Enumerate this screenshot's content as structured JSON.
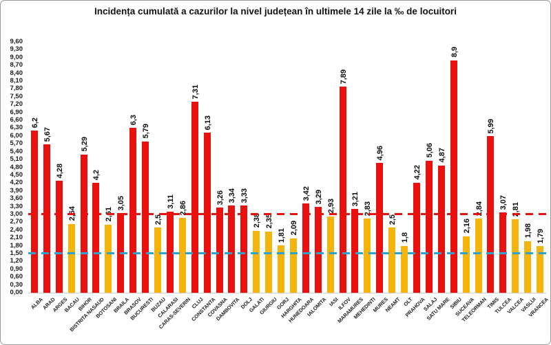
{
  "chart_data": {
    "type": "bar",
    "title": "Incidența cumulată a cazurilor la nivel județean în ultimele 14 zile la ‰ de locuitori",
    "xlabel": "",
    "ylabel": "",
    "ylim": [
      0,
      9.6
    ],
    "ytick_step": 0.3,
    "grid": false,
    "legend": "none",
    "yticks": [
      "9,60",
      "9,30",
      "9,00",
      "8,70",
      "8,40",
      "8,10",
      "7,80",
      "7,50",
      "7,20",
      "6,90",
      "6,60",
      "6,30",
      "6,00",
      "5,70",
      "5,40",
      "5,10",
      "4,80",
      "4,50",
      "4,20",
      "3,90",
      "3,60",
      "3,30",
      "3,00",
      "2,70",
      "2,40",
      "2,10",
      "1,80",
      "1,50",
      "1,20",
      "0,90",
      "0,60",
      "0,30",
      "0,00"
    ],
    "categories": [
      "ALBA",
      "ARAD",
      "ARGES",
      "BACAU",
      "BIHOR",
      "BISTRITA NASAUD",
      "BOTOSANI",
      "BRAILA",
      "BRASOV",
      "BUCURESTI",
      "BUZAU",
      "CALARASI",
      "CARAS-SEVERIN",
      "CLUJ",
      "CONSTANTA",
      "COVASNA",
      "DAMBOVITA",
      "DOLJ",
      "GALATI",
      "GIURGIU",
      "GORJ",
      "HARGHITA",
      "HUNEDOARA",
      "IALOMITA",
      "IASI",
      "ILFOV",
      "MARAMURES",
      "MEHEDINTI",
      "MURES",
      "NEAMT",
      "OLT",
      "PRAHOVA",
      "SALAJ",
      "SATU MARE",
      "SIBIU",
      "SUCEAVA",
      "TELEORMAN",
      "TIMIS",
      "TULCEA",
      "VALCEA",
      "VASLUI",
      "VRANCEA"
    ],
    "values": [
      6.2,
      5.67,
      4.28,
      2.64,
      5.29,
      4.2,
      2.61,
      3.05,
      6.3,
      5.79,
      2.5,
      3.11,
      2.86,
      7.31,
      6.13,
      3.26,
      3.34,
      3.33,
      2.38,
      2.35,
      1.81,
      2.09,
      3.42,
      3.29,
      2.93,
      7.89,
      3.21,
      2.83,
      4.96,
      2.5,
      1.8,
      4.22,
      5.06,
      4.87,
      8.9,
      2.16,
      2.84,
      5.99,
      3.07,
      2.81,
      1.98,
      1.79
    ],
    "value_labels": [
      "6,2",
      "5,67",
      "4,28",
      "2,64",
      "5,29",
      "4,2",
      "2,61",
      "3,05",
      "6,3",
      "5,79",
      "2,5",
      "3,11",
      "2,86",
      "7,31",
      "6,13",
      "3,26",
      "3,34",
      "3,33",
      "2,38",
      "2,35",
      "1,81",
      "2,09",
      "3,42",
      "3,29",
      "2,93",
      "7,89",
      "3,21",
      "2,83",
      "4,96",
      "2,5",
      "1,8",
      "4,22",
      "5,06",
      "4,87",
      "8,9",
      "2,16",
      "2,84",
      "5,99",
      "3,07",
      "2,81",
      "1,98",
      "1,79"
    ],
    "bar_colors": [
      "red",
      "red",
      "red",
      "yellow",
      "red",
      "red",
      "yellow",
      "red",
      "red",
      "red",
      "yellow",
      "red",
      "yellow",
      "red",
      "red",
      "red",
      "red",
      "red",
      "yellow",
      "yellow",
      "yellow",
      "yellow",
      "red",
      "red",
      "yellow",
      "red",
      "red",
      "yellow",
      "red",
      "yellow",
      "yellow",
      "red",
      "red",
      "red",
      "red",
      "yellow",
      "yellow",
      "red",
      "red",
      "yellow",
      "yellow",
      "yellow"
    ],
    "palette": {
      "red": "#e9100d",
      "yellow": "#f5b40c"
    },
    "thresholds": [
      {
        "name": "red-dashed-threshold-line",
        "value": 3.0,
        "color": "#e9100d",
        "style": "dashed"
      },
      {
        "name": "blue-dashed-threshold-line",
        "value": 1.5,
        "color": "#2aa3d4",
        "style": "dashed"
      }
    ]
  }
}
